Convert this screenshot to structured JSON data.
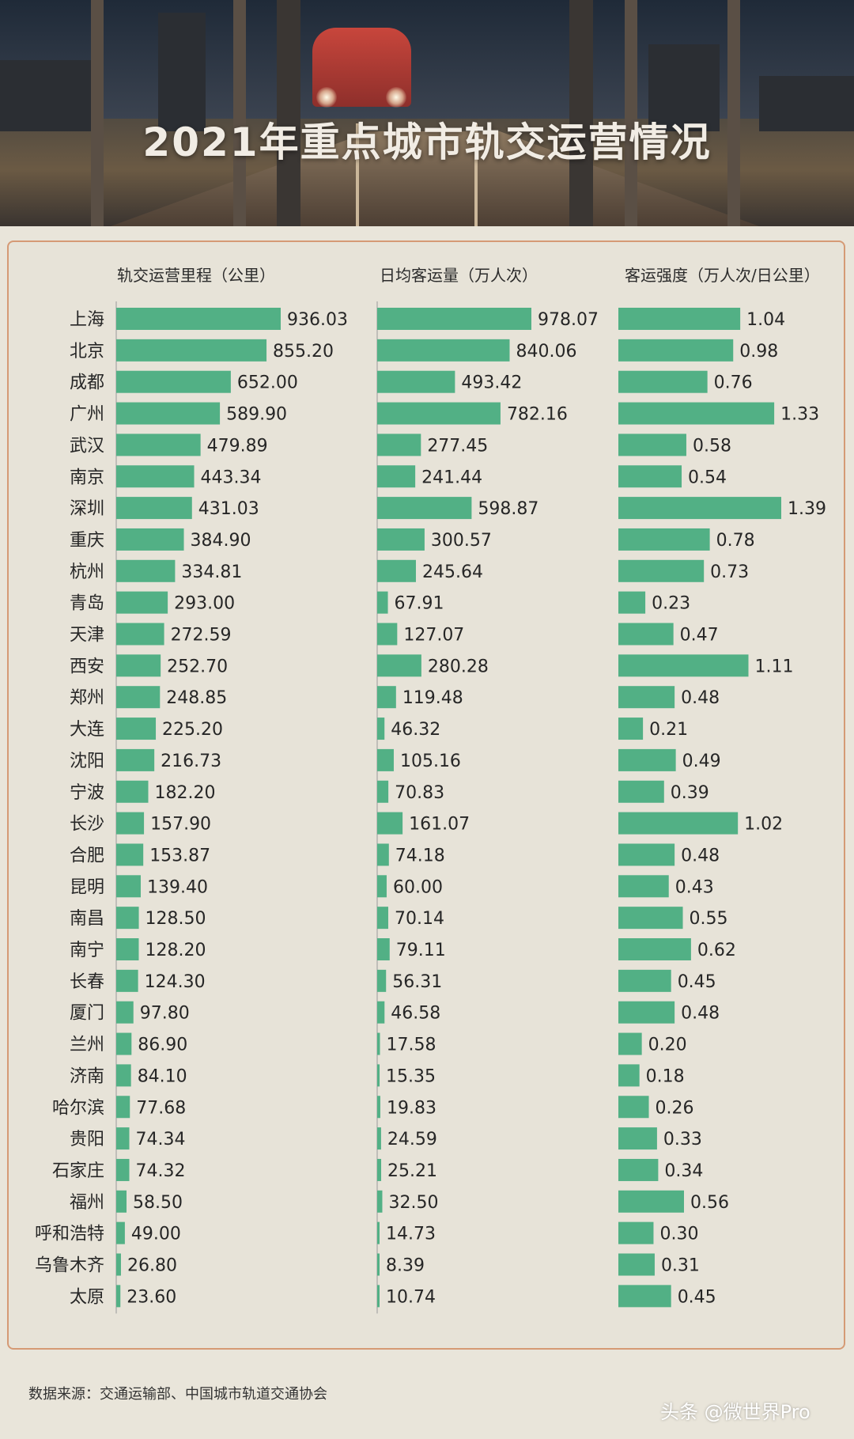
{
  "title": "2021年重点城市轨交运营情况",
  "source": "数据来源：交通运输部、中国城市轨道交通协会",
  "watermark": "头条 @微世界Pro",
  "colors": {
    "bar": "#52b085",
    "background": "#e9e5da",
    "border": "#d59a75"
  },
  "chart_data": {
    "type": "bar",
    "orientation": "horizontal",
    "categories": [
      "上海",
      "北京",
      "成都",
      "广州",
      "武汉",
      "南京",
      "深圳",
      "重庆",
      "杭州",
      "青岛",
      "天津",
      "西安",
      "郑州",
      "大连",
      "沈阳",
      "宁波",
      "长沙",
      "合肥",
      "昆明",
      "南昌",
      "南宁",
      "长春",
      "厦门",
      "兰州",
      "济南",
      "哈尔滨",
      "贵阳",
      "石家庄",
      "福州",
      "呼和浩特",
      "乌鲁木齐",
      "太原"
    ],
    "series": [
      {
        "name": "轨交运营里程（公里）",
        "decimals": 2,
        "values": [
          936.03,
          855.2,
          652.0,
          589.9,
          479.89,
          443.34,
          431.03,
          384.9,
          334.81,
          293.0,
          272.59,
          252.7,
          248.85,
          225.2,
          216.73,
          182.2,
          157.9,
          153.87,
          139.4,
          128.5,
          128.2,
          124.3,
          97.8,
          86.9,
          84.1,
          77.68,
          74.34,
          74.32,
          58.5,
          49.0,
          26.8,
          23.6
        ]
      },
      {
        "name": "日均客运量（万人次）",
        "decimals": 2,
        "values": [
          978.07,
          840.06,
          493.42,
          782.16,
          277.45,
          241.44,
          598.87,
          300.57,
          245.64,
          67.91,
          127.07,
          280.28,
          119.48,
          46.32,
          105.16,
          70.83,
          161.07,
          74.18,
          60.0,
          70.14,
          79.11,
          56.31,
          46.58,
          17.58,
          15.35,
          19.83,
          24.59,
          25.21,
          32.5,
          14.73,
          8.39,
          10.74
        ]
      },
      {
        "name": "客运强度（万人次/日公里）",
        "decimals": 2,
        "values": [
          1.04,
          0.98,
          0.76,
          1.33,
          0.58,
          0.54,
          1.39,
          0.78,
          0.73,
          0.23,
          0.47,
          1.11,
          0.48,
          0.21,
          0.49,
          0.39,
          1.02,
          0.48,
          0.43,
          0.55,
          0.62,
          0.45,
          0.48,
          0.2,
          0.18,
          0.26,
          0.33,
          0.34,
          0.56,
          0.3,
          0.31,
          0.45
        ]
      }
    ],
    "legend": "none",
    "grid": false
  }
}
